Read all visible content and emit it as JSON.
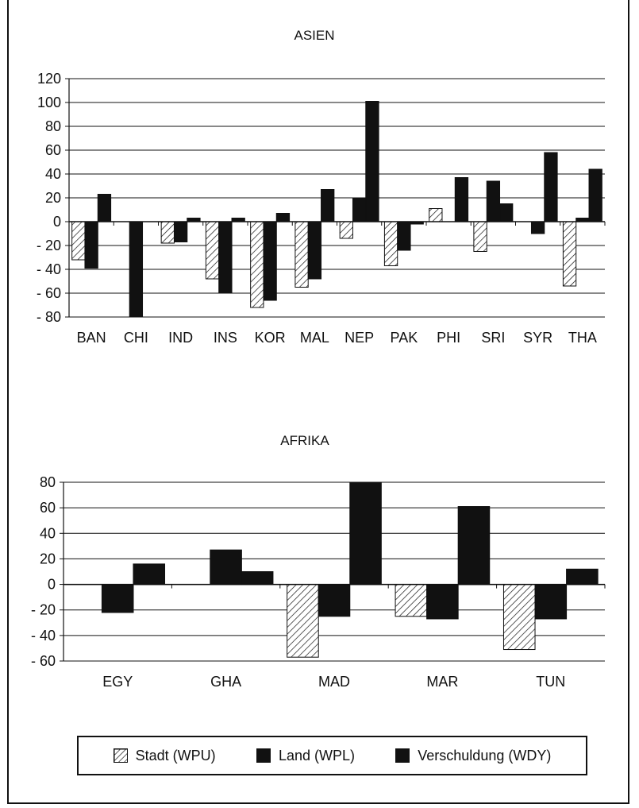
{
  "chart_data": [
    {
      "type": "bar",
      "title": "ASIEN",
      "categories": [
        "BAN",
        "CHI",
        "IND",
        "INS",
        "KOR",
        "MAL",
        "NEP",
        "PAK",
        "PHI",
        "SRI",
        "SYR",
        "THA"
      ],
      "ylim": [
        -80,
        120
      ],
      "yticks": [
        120,
        100,
        80,
        60,
        40,
        20,
        0,
        -20,
        -40,
        -60,
        -80
      ],
      "ytick_labels": [
        "120",
        "100",
        "80",
        "60",
        "40",
        "20",
        "0",
        "- 20",
        "- 40",
        "- 60",
        "- 80"
      ],
      "grid": true,
      "series": [
        {
          "name": "Stadt (WPU)",
          "values": [
            -32,
            0,
            -18,
            -48,
            -72,
            -55,
            -14,
            -37,
            11,
            -25,
            0,
            -54
          ]
        },
        {
          "name": "Land (WPL)",
          "values": [
            -39,
            -80,
            -17,
            -60,
            -66,
            -48,
            20,
            -24,
            0,
            34,
            -10,
            3
          ]
        },
        {
          "name": "Verschuldung (WDY)",
          "values": [
            23,
            0,
            3,
            3,
            7,
            27,
            101,
            -2,
            37,
            15,
            58,
            44
          ]
        }
      ]
    },
    {
      "type": "bar",
      "title": "AFRIKA",
      "categories": [
        "EGY",
        "GHA",
        "MAD",
        "MAR",
        "TUN"
      ],
      "ylim": [
        -60,
        80
      ],
      "yticks": [
        80,
        60,
        40,
        20,
        0,
        -20,
        -40,
        -60
      ],
      "ytick_labels": [
        "80",
        "60",
        "40",
        "20",
        "0",
        "- 20",
        "- 40",
        "- 60"
      ],
      "grid": true,
      "series": [
        {
          "name": "Stadt (WPU)",
          "values": [
            0,
            0,
            -57,
            -25,
            -51
          ]
        },
        {
          "name": "Land (WPL)",
          "values": [
            -22,
            27,
            -25,
            -27,
            -27
          ]
        },
        {
          "name": "Verschuldung (WDY)",
          "values": [
            16,
            10,
            80,
            61,
            12
          ]
        }
      ]
    }
  ],
  "legend": {
    "items": [
      {
        "label": "Stadt (WPU)",
        "pattern": "hatch"
      },
      {
        "label": "Land (WPL)",
        "pattern": "solid"
      },
      {
        "label": "Verschuldung (WDY)",
        "pattern": "solid"
      }
    ]
  },
  "colors": {
    "ink": "#111111",
    "background": "#ffffff"
  }
}
